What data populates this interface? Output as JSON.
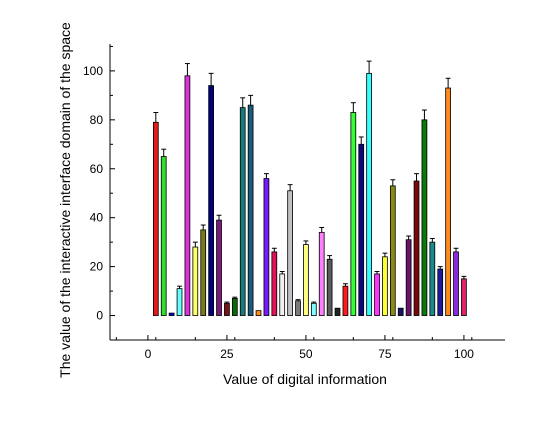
{
  "chart_data": {
    "type": "bar",
    "xlabel": "Value of digital information",
    "ylabel": "The value of the interactive interface domain of the space",
    "xlim": [
      -12,
      113
    ],
    "ylim": [
      -10,
      111
    ],
    "xticks": [
      0,
      25,
      50,
      75,
      100
    ],
    "yticks": [
      0,
      20,
      40,
      60,
      80,
      100
    ],
    "grid": false,
    "error_bars": true,
    "bars": [
      {
        "x": 2.5,
        "value": 79,
        "error": 4,
        "color": "#e31a1c"
      },
      {
        "x": 5,
        "value": 65,
        "error": 3,
        "color": "#33dd33"
      },
      {
        "x": 7.5,
        "value": 1,
        "error": 0,
        "color": "#0000dd"
      },
      {
        "x": 10,
        "value": 11,
        "error": 1,
        "color": "#66ffff"
      },
      {
        "x": 12.5,
        "value": 98,
        "error": 5,
        "color": "#dd33dd"
      },
      {
        "x": 15,
        "value": 28,
        "error": 2,
        "color": "#ffff66"
      },
      {
        "x": 17.5,
        "value": 35,
        "error": 2,
        "color": "#7a7a1a"
      },
      {
        "x": 20,
        "value": 94,
        "error": 5,
        "color": "#00007a"
      },
      {
        "x": 22.5,
        "value": 39,
        "error": 2,
        "color": "#7a1a7a"
      },
      {
        "x": 25,
        "value": 5,
        "error": 0.5,
        "color": "#7a1414"
      },
      {
        "x": 27.5,
        "value": 7,
        "error": 0.5,
        "color": "#0a6a0a"
      },
      {
        "x": 30,
        "value": 85,
        "error": 4,
        "color": "#1a7a7a"
      },
      {
        "x": 32.5,
        "value": 86,
        "error": 4,
        "color": "#1a5a7a"
      },
      {
        "x": 35,
        "value": 2,
        "error": 0,
        "color": "#ff8c1a"
      },
      {
        "x": 37.5,
        "value": 56,
        "error": 2,
        "color": "#7a1aff"
      },
      {
        "x": 40,
        "value": 26,
        "error": 1.5,
        "color": "#e0125a"
      },
      {
        "x": 42.5,
        "value": 17,
        "error": 1,
        "color": "#f0f0f0"
      },
      {
        "x": 45,
        "value": 51,
        "error": 2.5,
        "color": "#c0c0c0"
      },
      {
        "x": 47.5,
        "value": 6,
        "error": 0.5,
        "color": "#7a7a7a"
      },
      {
        "x": 50,
        "value": 29,
        "error": 1.5,
        "color": "#ffff80"
      },
      {
        "x": 52.5,
        "value": 5,
        "error": 0.5,
        "color": "#80ffff"
      },
      {
        "x": 55,
        "value": 34,
        "error": 2,
        "color": "#ff80ff"
      },
      {
        "x": 57.5,
        "value": 23,
        "error": 1.5,
        "color": "#5a5a5a"
      },
      {
        "x": 60,
        "value": 3,
        "error": 0,
        "color": "#222222"
      },
      {
        "x": 62.5,
        "value": 12,
        "error": 1,
        "color": "#ff1a1a"
      },
      {
        "x": 65,
        "value": 83,
        "error": 4,
        "color": "#33ff33"
      },
      {
        "x": 67.5,
        "value": 70,
        "error": 3,
        "color": "#0a0a7a"
      },
      {
        "x": 70,
        "value": 99,
        "error": 5,
        "color": "#33ffff"
      },
      {
        "x": 72.5,
        "value": 17,
        "error": 1,
        "color": "#ff33ff"
      },
      {
        "x": 75,
        "value": 24,
        "error": 1.5,
        "color": "#ffff33"
      },
      {
        "x": 77.5,
        "value": 53,
        "error": 2.5,
        "color": "#8a8a14"
      },
      {
        "x": 80,
        "value": 3,
        "error": 0,
        "color": "#14146a"
      },
      {
        "x": 82.5,
        "value": 31,
        "error": 1.5,
        "color": "#6a146a"
      },
      {
        "x": 85,
        "value": 55,
        "error": 3,
        "color": "#7a0a0a"
      },
      {
        "x": 87.5,
        "value": 80,
        "error": 4,
        "color": "#0a7a0a"
      },
      {
        "x": 90,
        "value": 30,
        "error": 1.5,
        "color": "#1a8a8a"
      },
      {
        "x": 92.5,
        "value": 19,
        "error": 1,
        "color": "#1a1a9a"
      },
      {
        "x": 95,
        "value": 93,
        "error": 4,
        "color": "#ff8c1a"
      },
      {
        "x": 97.5,
        "value": 26,
        "error": 1.5,
        "color": "#8a2ae0"
      },
      {
        "x": 100,
        "value": 15,
        "error": 1,
        "color": "#e0206a"
      }
    ]
  }
}
